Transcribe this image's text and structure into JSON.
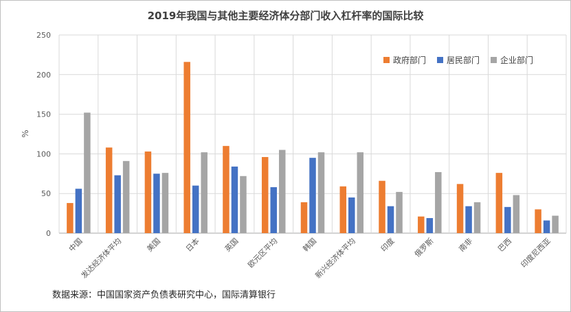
{
  "title": "2019年我国与其他主要经济体分部门收入杠杆率的国际比较",
  "source": "数据来源：中国国家资产负债表研究中心，国际清算银行",
  "chart_data": {
    "type": "bar",
    "title": "2019年我国与其他主要经济体分部门收入杠杆率的国际比较",
    "xlabel": "",
    "ylabel": "%",
    "ylim": [
      0,
      250
    ],
    "yticks": [
      0,
      50,
      100,
      150,
      200,
      250
    ],
    "grid": true,
    "legend_position": "top-right",
    "categories": [
      "中国",
      "发达经济体平均",
      "美国",
      "日本",
      "英国",
      "欧元区平均",
      "韩国",
      "新兴经济体平均",
      "印度",
      "俄罗斯",
      "南非",
      "巴西",
      "印度尼西亚"
    ],
    "series": [
      {
        "name": "政府部门",
        "color": "#ED7D31",
        "values": [
          38,
          108,
          103,
          216,
          110,
          96,
          39,
          59,
          66,
          21,
          62,
          76,
          30
        ]
      },
      {
        "name": "居民部门",
        "color": "#4472C4",
        "values": [
          56,
          73,
          75,
          60,
          84,
          58,
          95,
          45,
          34,
          19,
          34,
          33,
          16
        ]
      },
      {
        "name": "企业部门",
        "color": "#A5A5A5",
        "values": [
          152,
          91,
          76,
          102,
          72,
          105,
          102,
          102,
          52,
          77,
          39,
          48,
          22
        ]
      }
    ]
  }
}
